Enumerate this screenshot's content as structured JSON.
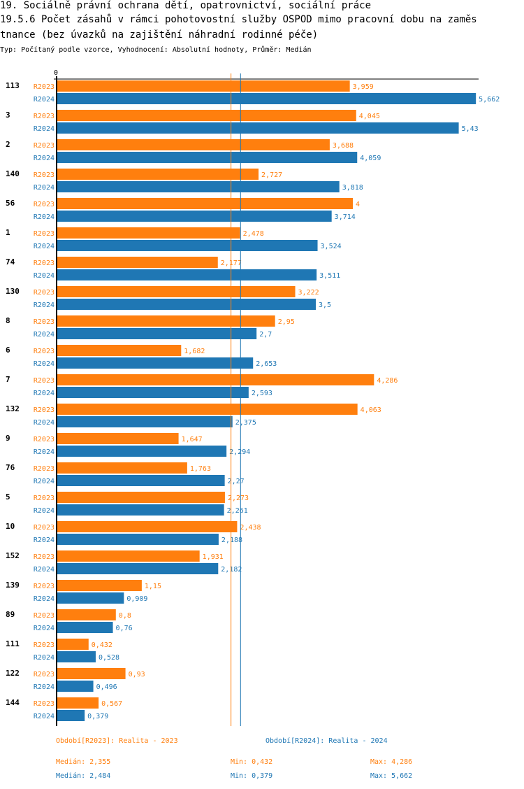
{
  "title_line1": "19. Sociálně právní ochrana dětí, opatrovnictví, sociální práce",
  "title_line2": "19.5.6 Počet zásahů v rámci pohotovostní služby OSPOD mimo pracovní dobu na zaměs",
  "title_line3": "tnance (bez úvazků na zajištění náhradní rodinné péče)",
  "subtitle": "Typ: Počítaný podle vzorce, Vyhodnocení: Absolutní hodnoty, Průměr: Medián",
  "colors": {
    "R2023": "#ff7f0e",
    "R2024": "#1f77b4"
  },
  "legend": {
    "r2023_period": "Období[R2023]: Realita - 2023",
    "r2024_period": "Období[R2024]: Realita - 2024",
    "r2023_median": "Medián: 2,355",
    "r2023_min": "Min: 0,432",
    "r2023_max": "Max: 4,286",
    "r2024_median": "Medián: 2,484",
    "r2024_min": "Min: 0,379",
    "r2024_max": "Max: 5,662"
  },
  "chart_data": {
    "type": "bar",
    "orientation": "horizontal",
    "title": "19.5.6 Počet zásahů v rámci pohotovostní služby OSPOD mimo pracovní dobu na zaměstnance (bez úvazků na zajištění náhradní rodinné péče)",
    "xlabel": "",
    "ylabel": "",
    "x_tick_labels": [
      "0"
    ],
    "xlim": [
      0,
      5.7
    ],
    "categories": [
      "113",
      "3",
      "2",
      "140",
      "56",
      "1",
      "74",
      "130",
      "8",
      "6",
      "7",
      "132",
      "9",
      "76",
      "5",
      "10",
      "152",
      "139",
      "89",
      "111",
      "122",
      "144"
    ],
    "series": [
      {
        "name": "R2023",
        "values": [
          3.959,
          4.045,
          3.688,
          2.727,
          4,
          2.478,
          2.177,
          3.222,
          2.95,
          1.682,
          4.286,
          4.063,
          1.647,
          1.763,
          2.273,
          2.438,
          1.931,
          1.15,
          0.8,
          0.432,
          0.93,
          0.567
        ],
        "labels": [
          "3,959",
          "4,045",
          "3,688",
          "2,727",
          "4",
          "2,478",
          "2,177",
          "3,222",
          "2,95",
          "1,682",
          "4,286",
          "4,063",
          "1,647",
          "1,763",
          "2,273",
          "2,438",
          "1,931",
          "1,15",
          "0,8",
          "0,432",
          "0,93",
          "0,567"
        ],
        "median": 2.355
      },
      {
        "name": "R2024",
        "values": [
          5.662,
          5.43,
          4.059,
          3.818,
          3.714,
          3.524,
          3.511,
          3.5,
          2.7,
          2.653,
          2.593,
          2.375,
          2.294,
          2.27,
          2.261,
          2.188,
          2.182,
          0.909,
          0.76,
          0.528,
          0.496,
          0.379
        ],
        "labels": [
          "5,662",
          "5,43",
          "4,059",
          "3,818",
          "3,714",
          "3,524",
          "3,511",
          "3,5",
          "2,7",
          "2,653",
          "2,593",
          "2,375",
          "2,294",
          "2,27",
          "2,261",
          "2,188",
          "2,182",
          "0,909",
          "0,76",
          "0,528",
          "0,496",
          "0,379"
        ],
        "median": 2.484
      }
    ],
    "reference_lines": [
      {
        "series": "R2023",
        "type": "median",
        "value": 2.355
      },
      {
        "series": "R2024",
        "type": "median",
        "value": 2.484
      }
    ],
    "legend_position": "bottom",
    "grid": false
  }
}
